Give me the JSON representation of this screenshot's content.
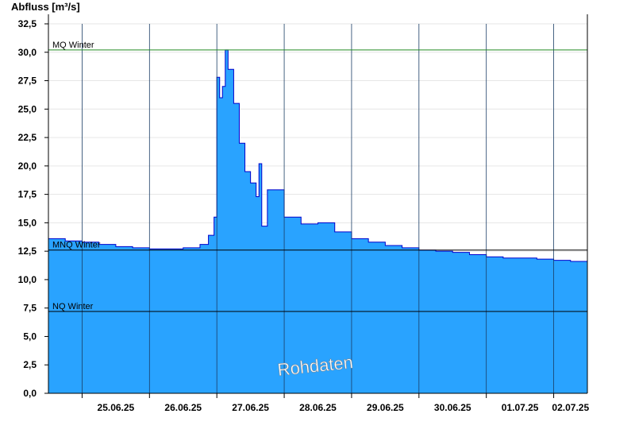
{
  "chart_data": {
    "type": "area",
    "ylabel": "Abfluss [m³/s]",
    "ylim": [
      0,
      32.5
    ],
    "yticks": [
      "0,0",
      "2,5",
      "5,0",
      "7,5",
      "10,0",
      "12,5",
      "15,0",
      "17,5",
      "20,0",
      "22,5",
      "25,0",
      "27,5",
      "30,0",
      "32,5"
    ],
    "xlim": [
      "2025-06-24 12:00",
      "2025-07-02 12:00"
    ],
    "xticks": [
      {
        "label": "25.06.25",
        "day": "2025-06-25"
      },
      {
        "label": "26.06.25",
        "day": "2025-06-26"
      },
      {
        "label": "27.06.25",
        "day": "2025-06-27"
      },
      {
        "label": "28.06.25",
        "day": "2025-06-28"
      },
      {
        "label": "29.06.25",
        "day": "2025-06-29"
      },
      {
        "label": "30.06.25",
        "day": "2025-06-30"
      },
      {
        "label": "01.07.25",
        "day": "2025-07-01"
      },
      {
        "label": "02.07.25",
        "day": "2025-07-02"
      }
    ],
    "series": [
      {
        "x": [
          "2025-06-24 12:00",
          "2025-06-24 18:00",
          "2025-06-25 00:00",
          "2025-06-25 06:00",
          "2025-06-25 12:00",
          "2025-06-25 18:00",
          "2025-06-26 00:00",
          "2025-06-26 06:00",
          "2025-06-26 12:00",
          "2025-06-26 18:00",
          "2025-06-26 21:00",
          "2025-06-26 23:00",
          "2025-06-27 00:00",
          "2025-06-27 01:00",
          "2025-06-27 02:00",
          "2025-06-27 03:00",
          "2025-06-27 04:00",
          "2025-06-27 06:00",
          "2025-06-27 08:00",
          "2025-06-27 10:00",
          "2025-06-27 12:00",
          "2025-06-27 14:00",
          "2025-06-27 15:00",
          "2025-06-27 16:00",
          "2025-06-27 18:00",
          "2025-06-28 00:00",
          "2025-06-28 06:00",
          "2025-06-28 12:00",
          "2025-06-28 18:00",
          "2025-06-29 00:00",
          "2025-06-29 06:00",
          "2025-06-29 12:00",
          "2025-06-29 18:00",
          "2025-06-30 00:00",
          "2025-06-30 06:00",
          "2025-06-30 12:00",
          "2025-06-30 18:00",
          "2025-07-01 00:00",
          "2025-07-01 06:00",
          "2025-07-01 12:00",
          "2025-07-01 18:00",
          "2025-07-02 00:00",
          "2025-07-02 06:00",
          "2025-07-02 12:00"
        ],
        "y": [
          13.6,
          13.4,
          13.3,
          13.1,
          12.9,
          12.8,
          12.7,
          12.7,
          12.8,
          13.1,
          13.9,
          15.5,
          27.8,
          26.0,
          27.0,
          30.2,
          28.5,
          25.5,
          22.0,
          19.5,
          18.5,
          17.3,
          20.2,
          14.7,
          17.9,
          15.5,
          14.9,
          15.0,
          14.2,
          13.6,
          13.3,
          13.0,
          12.8,
          12.6,
          12.5,
          12.4,
          12.2,
          12.0,
          11.9,
          11.9,
          11.8,
          11.7,
          11.6,
          11.5
        ]
      }
    ],
    "reference_lines": [
      {
        "label": "MQ Winter",
        "value": 30.2,
        "color": "#228B22"
      },
      {
        "label": "MNQ Winter",
        "value": 12.6,
        "color": "#000000"
      },
      {
        "label": "NQ Winter",
        "value": 7.2,
        "color": "#000000"
      }
    ],
    "annotation": "Rohdaten",
    "fill_color": "#29A3FF",
    "line_color": "#0000CC",
    "grid": true
  }
}
